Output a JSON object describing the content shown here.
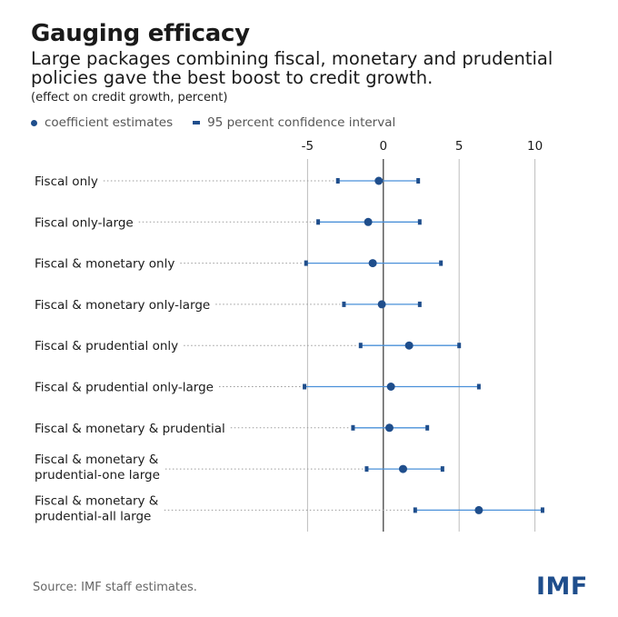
{
  "header": {
    "title": "Gauging efficacy",
    "subtitle": "Large packages combining fiscal, monetary and prudential policies gave the best boost to credit growth.",
    "unit": "(effect on credit growth, percent)"
  },
  "legend": {
    "point_label": "coefficient estimates",
    "interval_label": "95 percent confidence interval"
  },
  "footer": {
    "source": "Source:  IMF staff estimates.",
    "logo": "IMF"
  },
  "colors": {
    "series": "#1f4e8c",
    "interval": "#4a90d9",
    "gridline": "#bdbdbd",
    "leader": "#9a9a9a"
  },
  "chart_data": {
    "type": "scatter",
    "title": "Gauging efficacy",
    "xlabel": "",
    "ylabel": "",
    "xlim": [
      -10,
      15
    ],
    "xticks": [
      -5,
      0,
      5,
      10
    ],
    "categories": [
      [
        "Fiscal only"
      ],
      [
        "Fiscal only-large"
      ],
      [
        "Fiscal & monetary only"
      ],
      [
        "Fiscal & monetary only-large"
      ],
      [
        "Fiscal & prudential only"
      ],
      [
        "Fiscal  & prudential only-large"
      ],
      [
        "Fiscal & monetary & prudential"
      ],
      [
        "Fiscal & monetary &",
        "prudential-one large"
      ],
      [
        "Fiscal & monetary &",
        "prudential-all large"
      ]
    ],
    "series": [
      {
        "name": "coefficient estimates",
        "values": [
          -0.3,
          -1.0,
          -0.7,
          -0.1,
          1.7,
          0.5,
          0.4,
          1.3,
          6.3
        ]
      },
      {
        "name": "95 percent confidence interval",
        "lower": [
          -3.0,
          -4.3,
          -5.1,
          -2.6,
          -1.5,
          -5.2,
          -2.0,
          -1.1,
          2.1
        ],
        "upper": [
          2.3,
          2.4,
          3.8,
          2.4,
          5.0,
          6.3,
          2.9,
          3.9,
          10.5
        ]
      }
    ]
  }
}
